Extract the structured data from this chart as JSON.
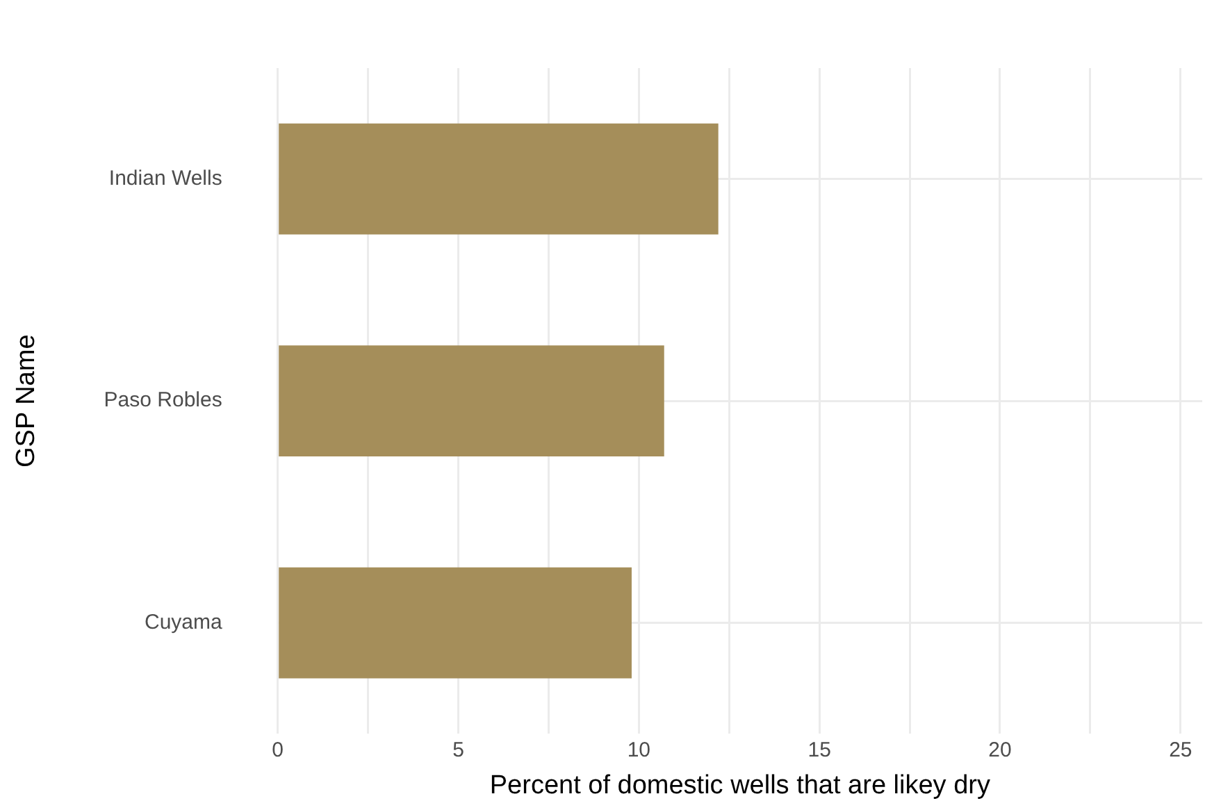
{
  "chart_data": {
    "type": "bar",
    "orientation": "horizontal",
    "xlabel": "Percent of domestic wells that are likey dry",
    "ylabel": "GSP Name",
    "categories": [
      "Indian Wells",
      "Paso Robles",
      "Cuyama"
    ],
    "values": [
      12.2,
      10.7,
      9.8
    ],
    "color": "#a58e5a",
    "xlim": [
      0,
      25.6
    ],
    "xticks": [
      0,
      {
        "value": 2.5,
        "label": null
      },
      5,
      {
        "value": 7.5,
        "label": null
      },
      10,
      {
        "value": 12.5,
        "label": null
      },
      15,
      {
        "value": 17.5,
        "label": null
      },
      20,
      {
        "value": 22.5,
        "label": null
      },
      25
    ],
    "grid": true,
    "legend": false
  }
}
